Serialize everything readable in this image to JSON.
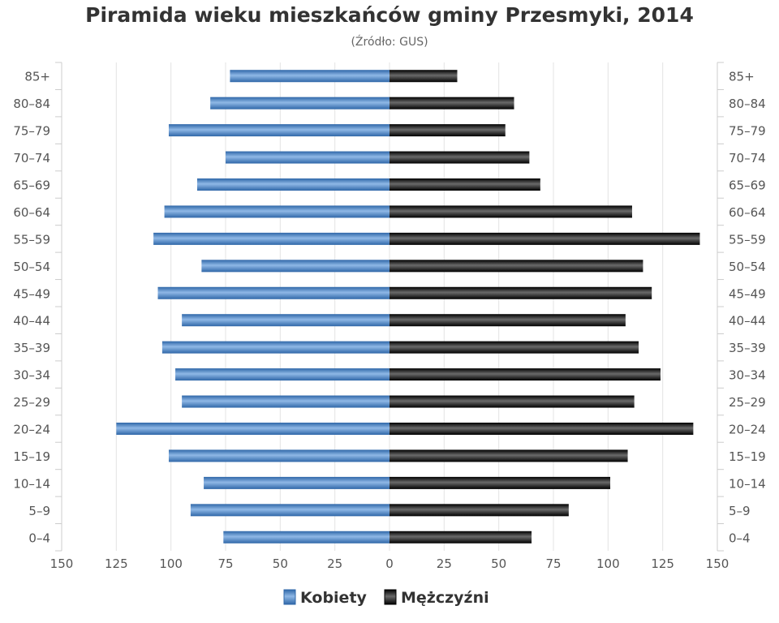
{
  "chart_data": {
    "type": "bar",
    "orientation": "horizontal-pyramid",
    "title": "Piramida wieku mieszkańców gminy Przesmyki, 2014",
    "subtitle": "(Źródło: GUS)",
    "categories": [
      "85+",
      "80-84",
      "75-79",
      "70-74",
      "65-69",
      "60-64",
      "55-59",
      "50-54",
      "45-49",
      "40-44",
      "35-39",
      "30-34",
      "25-29",
      "20-24",
      "15-19",
      "10-14",
      "5-9",
      "0-4"
    ],
    "series": [
      {
        "name": "Kobiety",
        "color": "#4a82c3",
        "values": [
          73,
          82,
          101,
          75,
          88,
          103,
          108,
          86,
          106,
          95,
          104,
          98,
          95,
          125,
          101,
          85,
          91,
          76
        ]
      },
      {
        "name": "Mężczyźni",
        "color": "#1a1a1a",
        "values": [
          31,
          57,
          53,
          64,
          69,
          111,
          142,
          116,
          120,
          108,
          114,
          124,
          112,
          139,
          109,
          101,
          82,
          65
        ]
      }
    ],
    "x_ticks": [
      "150",
      "125",
      "100",
      "75",
      "50",
      "25",
      "0",
      "25",
      "50",
      "75",
      "100",
      "125",
      "150"
    ],
    "xlim": [
      -150,
      150
    ],
    "grid": true,
    "legend_position": "bottom-center"
  }
}
